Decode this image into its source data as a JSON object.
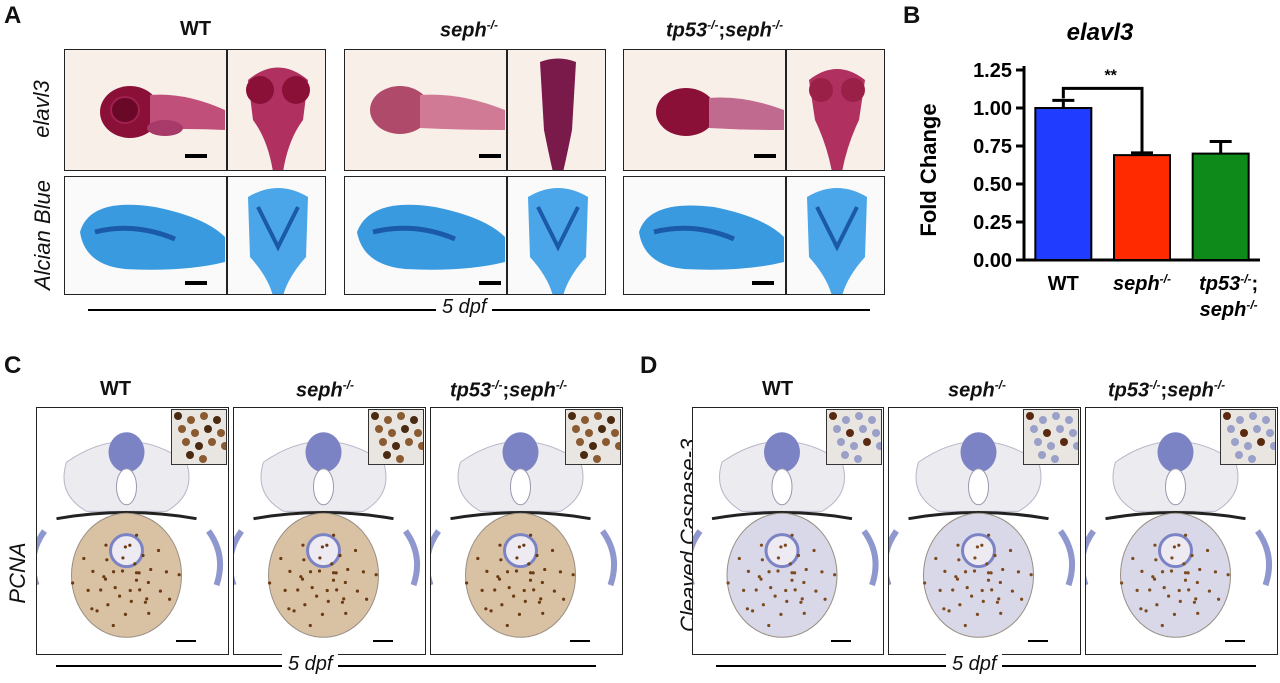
{
  "panel_labels": {
    "a": "A",
    "b": "B",
    "c": "C",
    "d": "D"
  },
  "genotypes": {
    "wt": "WT",
    "seph_base": "seph",
    "seph_sup": "-/-",
    "tp53_base": "tp53",
    "tp53_sup": "-/-",
    "sep": ";"
  },
  "row_labels": {
    "elavl3": "elavl3",
    "alcian": "Alcian Blue",
    "pcna": "PCNA",
    "caspase": "Cleaved Caspase-3"
  },
  "time_label": "5 dpf",
  "chart_data": {
    "type": "bar",
    "title": "elavl3",
    "ylabel": "Fold Change",
    "xlabel": "",
    "ylim": [
      0,
      1.25
    ],
    "yticks": [
      "0.00",
      "0.25",
      "0.50",
      "0.75",
      "1.00",
      "1.25"
    ],
    "categories": [
      "WT",
      "seph-/-",
      "tp53-/-; seph-/-"
    ],
    "values": [
      1.0,
      0.69,
      0.7
    ],
    "errors": [
      0.05,
      0.015,
      0.08
    ],
    "colors": [
      "#1f3cff",
      "#ff2a00",
      "#0d8a1a"
    ],
    "significance": {
      "from": 0,
      "to": 1,
      "label": "**"
    }
  }
}
